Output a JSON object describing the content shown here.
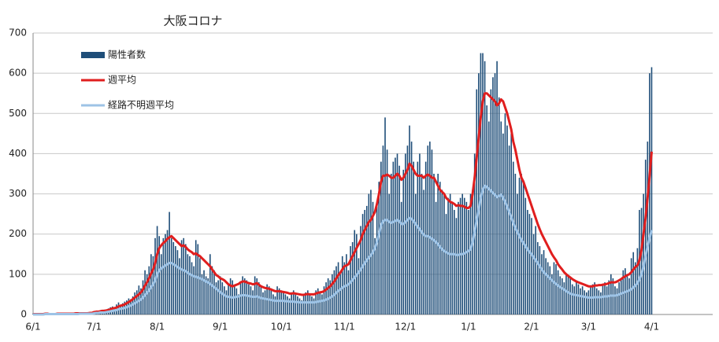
{
  "chart_data": {
    "type": "bar",
    "title": "大阪コロナ",
    "categories": [
      "6/1",
      null,
      null,
      null,
      null,
      null,
      null,
      null,
      null,
      null,
      null,
      null,
      null,
      null,
      null,
      null,
      null,
      null,
      null,
      null,
      null,
      null,
      null,
      null,
      null,
      null,
      null,
      null,
      null,
      null,
      "7/1",
      null,
      null,
      null,
      null,
      null,
      null,
      null,
      null,
      null,
      null,
      null,
      null,
      null,
      null,
      null,
      null,
      null,
      null,
      null,
      null,
      null,
      null,
      null,
      null,
      null,
      null,
      null,
      null,
      null,
      null,
      "8/1",
      null,
      null,
      null,
      null,
      null,
      null,
      null,
      null,
      null,
      null,
      null,
      null,
      null,
      null,
      null,
      null,
      null,
      null,
      null,
      null,
      null,
      null,
      null,
      null,
      null,
      null,
      null,
      null,
      null,
      null,
      "9/1",
      null,
      null,
      null,
      null,
      null,
      null,
      null,
      null,
      null,
      null,
      null,
      null,
      null,
      null,
      null,
      null,
      null,
      null,
      null,
      null,
      null,
      null,
      null,
      null,
      null,
      null,
      null,
      null,
      null,
      "10/1",
      null,
      null,
      null,
      null,
      null,
      null,
      null,
      null,
      null,
      null,
      null,
      null,
      null,
      null,
      null,
      null,
      null,
      null,
      null,
      null,
      null,
      null,
      null,
      null,
      null,
      null,
      null,
      null,
      null,
      null,
      "11/1",
      null,
      null,
      null,
      null,
      null,
      null,
      null,
      null,
      null,
      null,
      null,
      null,
      null,
      null,
      null,
      null,
      null,
      null,
      null,
      null,
      null,
      null,
      null,
      null,
      null,
      null,
      null,
      null,
      null,
      "12/1",
      null,
      null,
      null,
      null,
      null,
      null,
      null,
      null,
      null,
      null,
      null,
      null,
      null,
      null,
      null,
      null,
      null,
      null,
      null,
      null,
      null,
      null,
      null,
      null,
      null,
      null,
      null,
      null,
      null,
      null,
      "1/1",
      null,
      null,
      null,
      null,
      null,
      null,
      null,
      null,
      null,
      null,
      null,
      null,
      null,
      null,
      null,
      null,
      null,
      null,
      null,
      null,
      null,
      null,
      null,
      null,
      null,
      null,
      null,
      null,
      null,
      null,
      "2/1",
      null,
      null,
      null,
      null,
      null,
      null,
      null,
      null,
      null,
      null,
      null,
      null,
      null,
      null,
      null,
      null,
      null,
      null,
      null,
      null,
      null,
      null,
      null,
      null,
      null,
      null,
      null,
      "3/1",
      null,
      null,
      null,
      null,
      null,
      null,
      null,
      null,
      null,
      null,
      null,
      null,
      null,
      null,
      null,
      null,
      null,
      null,
      null,
      null,
      null,
      null,
      null,
      null,
      null,
      null,
      null,
      null,
      null,
      null,
      "4/1"
    ],
    "series": [
      {
        "name": "陽性者数",
        "type": "bar",
        "color": "#1f4e79",
        "values": [
          2,
          1,
          1,
          0,
          3,
          2,
          1,
          0,
          1,
          2,
          1,
          3,
          2,
          1,
          0,
          2,
          1,
          3,
          2,
          4,
          3,
          2,
          1,
          4,
          5,
          3,
          2,
          6,
          4,
          5,
          7,
          6,
          5,
          8,
          10,
          12,
          9,
          15,
          18,
          20,
          16,
          25,
          30,
          22,
          28,
          32,
          35,
          40,
          38,
          45,
          55,
          60,
          72,
          65,
          85,
          110,
          100,
          120,
          150,
          145,
          190,
          220,
          195,
          150,
          190,
          200,
          210,
          255,
          190,
          180,
          170,
          160,
          140,
          185,
          190,
          175,
          150,
          145,
          130,
          120,
          185,
          175,
          140,
          100,
          110,
          95,
          90,
          150,
          120,
          110,
          80,
          85,
          95,
          80,
          70,
          60,
          75,
          90,
          85,
          70,
          65,
          50,
          80,
          95,
          90,
          85,
          75,
          70,
          60,
          95,
          90,
          80,
          70,
          55,
          60,
          75,
          70,
          65,
          50,
          45,
          70,
          65,
          60,
          55,
          50,
          45,
          40,
          55,
          60,
          50,
          45,
          40,
          35,
          50,
          55,
          60,
          50,
          45,
          40,
          60,
          65,
          55,
          50,
          70,
          80,
          90,
          85,
          100,
          110,
          120,
          130,
          100,
          145,
          130,
          150,
          110,
          170,
          180,
          210,
          200,
          140,
          220,
          250,
          260,
          270,
          300,
          310,
          280,
          190,
          270,
          330,
          380,
          420,
          490,
          410,
          300,
          350,
          380,
          390,
          400,
          370,
          280,
          360,
          400,
          420,
          470,
          430,
          380,
          300,
          380,
          400,
          350,
          310,
          380,
          420,
          430,
          410,
          350,
          280,
          350,
          330,
          310,
          300,
          250,
          290,
          300,
          280,
          260,
          240,
          280,
          290,
          300,
          290,
          280,
          260,
          300,
          310,
          400,
          560,
          600,
          650,
          650,
          630,
          520,
          480,
          560,
          590,
          600,
          630,
          540,
          480,
          450,
          500,
          470,
          420,
          450,
          380,
          350,
          300,
          340,
          350,
          330,
          290,
          260,
          250,
          240,
          200,
          220,
          180,
          170,
          150,
          160,
          140,
          130,
          120,
          100,
          130,
          125,
          110,
          95,
          90,
          80,
          100,
          95,
          90,
          75,
          70,
          80,
          75,
          65,
          70,
          60,
          55,
          60,
          70,
          75,
          80,
          65,
          60,
          55,
          75,
          80,
          70,
          85,
          100,
          90,
          70,
          65,
          80,
          90,
          110,
          115,
          100,
          90,
          140,
          155,
          130,
          165,
          260,
          265,
          300,
          385,
          430,
          600,
          615
        ]
      },
      {
        "name": "週平均",
        "type": "line",
        "color": "#e01e1e",
        "values": [
          1,
          1,
          1,
          1,
          1,
          1,
          2,
          2,
          1,
          1,
          1,
          1,
          2,
          2,
          2,
          2,
          2,
          2,
          2,
          2,
          2,
          3,
          3,
          3,
          3,
          3,
          3,
          3,
          4,
          4,
          6,
          7,
          7,
          8,
          9,
          9,
          10,
          11,
          13,
          15,
          16,
          17,
          20,
          22,
          23,
          25,
          28,
          31,
          34,
          38,
          42,
          46,
          50,
          55,
          62,
          72,
          80,
          90,
          102,
          112,
          128,
          150,
          165,
          172,
          178,
          182,
          188,
          192,
          195,
          190,
          185,
          180,
          175,
          170,
          172,
          168,
          162,
          158,
          155,
          150,
          152,
          148,
          145,
          140,
          135,
          130,
          125,
          120,
          112,
          105,
          98,
          95,
          90,
          88,
          85,
          80,
          75,
          72,
          70,
          72,
          74,
          76,
          80,
          82,
          82,
          80,
          78,
          77,
          75,
          76,
          78,
          74,
          70,
          68,
          66,
          65,
          64,
          62,
          60,
          58,
          58,
          58,
          57,
          56,
          55,
          54,
          52,
          52,
          53,
          52,
          51,
          50,
          49,
          49,
          50,
          51,
          50,
          50,
          50,
          52,
          54,
          55,
          56,
          58,
          62,
          66,
          70,
          76,
          82,
          90,
          98,
          104,
          112,
          120,
          122,
          125,
          135,
          145,
          155,
          165,
          175,
          185,
          200,
          210,
          220,
          230,
          235,
          245,
          255,
          275,
          300,
          330,
          345,
          345,
          348,
          345,
          340,
          340,
          345,
          350,
          345,
          335,
          340,
          350,
          360,
          375,
          370,
          360,
          350,
          345,
          345,
          345,
          340,
          345,
          348,
          345,
          340,
          340,
          330,
          320,
          310,
          305,
          300,
          290,
          285,
          280,
          278,
          275,
          270,
          272,
          270,
          270,
          268,
          265,
          265,
          270,
          300,
          340,
          390,
          440,
          490,
          530,
          550,
          550,
          545,
          540,
          535,
          530,
          520,
          525,
          535,
          530,
          515,
          500,
          480,
          460,
          430,
          410,
          385,
          360,
          340,
          330,
          315,
          300,
          285,
          270,
          255,
          240,
          225,
          212,
          200,
          190,
          180,
          170,
          160,
          150,
          142,
          135,
          125,
          118,
          112,
          105,
          100,
          96,
          92,
          88,
          85,
          82,
          80,
          78,
          76,
          74,
          72,
          70,
          70,
          70,
          72,
          72,
          73,
          73,
          74,
          75,
          76,
          78,
          80,
          80,
          80,
          82,
          85,
          88,
          92,
          95,
          98,
          100,
          105,
          112,
          118,
          122,
          135,
          160,
          200,
          240,
          290,
          345,
          405
        ]
      },
      {
        "name": "経路不明週平均",
        "type": "line",
        "color": "#9dc3e6",
        "values": [
          0,
          0,
          0,
          0,
          0,
          0,
          1,
          1,
          1,
          1,
          1,
          1,
          1,
          1,
          1,
          1,
          1,
          1,
          1,
          1,
          1,
          1,
          1,
          2,
          2,
          2,
          2,
          2,
          2,
          2,
          3,
          4,
          4,
          5,
          5,
          5,
          6,
          7,
          8,
          9,
          10,
          11,
          13,
          14,
          15,
          16,
          18,
          20,
          22,
          25,
          28,
          31,
          34,
          37,
          42,
          48,
          54,
          60,
          68,
          75,
          85,
          100,
          110,
          115,
          118,
          122,
          125,
          128,
          128,
          125,
          122,
          118,
          115,
          112,
          110,
          108,
          104,
          100,
          98,
          95,
          94,
          92,
          90,
          88,
          85,
          82,
          80,
          76,
          72,
          68,
          64,
          60,
          55,
          52,
          48,
          45,
          44,
          43,
          42,
          43,
          44,
          45,
          47,
          48,
          48,
          47,
          46,
          45,
          44,
          44,
          45,
          43,
          41,
          40,
          39,
          38,
          37,
          36,
          35,
          34,
          34,
          34,
          34,
          34,
          33,
          33,
          32,
          32,
          32,
          31,
          31,
          30,
          30,
          30,
          30,
          30,
          30,
          30,
          30,
          31,
          32,
          33,
          34,
          35,
          37,
          39,
          42,
          45,
          49,
          54,
          59,
          62,
          67,
          70,
          72,
          75,
          80,
          86,
          92,
          98,
          105,
          112,
          120,
          128,
          135,
          142,
          147,
          155,
          165,
          180,
          200,
          222,
          232,
          235,
          235,
          230,
          228,
          230,
          233,
          235,
          232,
          225,
          225,
          230,
          235,
          240,
          238,
          232,
          225,
          218,
          212,
          205,
          198,
          195,
          195,
          192,
          188,
          185,
          180,
          175,
          168,
          162,
          158,
          155,
          152,
          150,
          150,
          150,
          148,
          148,
          150,
          150,
          152,
          155,
          158,
          162,
          180,
          205,
          235,
          260,
          290,
          310,
          320,
          318,
          312,
          308,
          302,
          298,
          292,
          295,
          298,
          290,
          280,
          268,
          255,
          242,
          228,
          215,
          205,
          195,
          185,
          178,
          170,
          162,
          155,
          150,
          142,
          135,
          128,
          120,
          112,
          105,
          100,
          95,
          90,
          85,
          80,
          76,
          72,
          68,
          65,
          62,
          58,
          55,
          52,
          50,
          49,
          48,
          47,
          46,
          45,
          44,
          43,
          42,
          42,
          42,
          43,
          43,
          43,
          43,
          44,
          45,
          45,
          46,
          47,
          47,
          47,
          48,
          50,
          52,
          54,
          56,
          58,
          60,
          63,
          67,
          72,
          78,
          88,
          100,
          120,
          145,
          170,
          190,
          210
        ]
      }
    ],
    "ylim": [
      0,
      700
    ],
    "yticks": [
      0,
      100,
      200,
      300,
      400,
      500,
      600,
      700
    ],
    "grid": true,
    "legend": "upper left"
  }
}
